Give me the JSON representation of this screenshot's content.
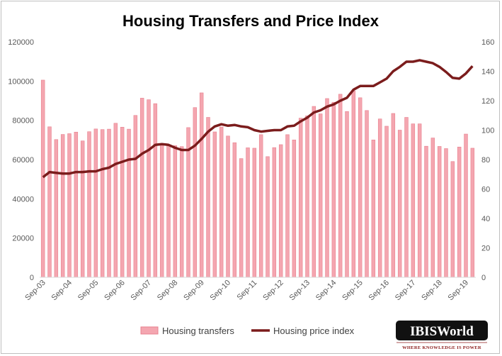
{
  "chart_data": {
    "type": "bar",
    "title": "Housing Transfers and Price Index",
    "categories": [
      "Sep-03",
      "",
      "",
      "",
      "Sep-04",
      "",
      "",
      "",
      "Sep-05",
      "",
      "",
      "",
      "Sep-06",
      "",
      "",
      "",
      "Sep-07",
      "",
      "",
      "",
      "Sep-08",
      "",
      "",
      "",
      "Sep-09",
      "",
      "",
      "",
      "Sep-10",
      "",
      "",
      "",
      "Sep-11",
      "",
      "",
      "",
      "Sep-12",
      "",
      "",
      "",
      "Sep-13",
      "",
      "",
      "",
      "Sep-14",
      "",
      "",
      "",
      "Sep-15",
      "",
      "",
      "",
      "Sep-16",
      "",
      "",
      "",
      "Sep-17",
      "",
      "",
      "",
      "Sep-18",
      "",
      "",
      "",
      "Sep-19",
      ""
    ],
    "series": [
      {
        "name": "Housing transfers",
        "type": "bar",
        "axis": "left",
        "color": "#f4a6b0",
        "values": [
          100500,
          76700,
          70200,
          72800,
          73200,
          74000,
          69500,
          74200,
          75600,
          75300,
          75500,
          78500,
          76500,
          75500,
          82500,
          91300,
          90500,
          88500,
          67000,
          67600,
          67100,
          66600,
          76300,
          86500,
          94000,
          81500,
          74100,
          76600,
          72000,
          68600,
          60500,
          66000,
          65800,
          72700,
          61500,
          66100,
          67600,
          72700,
          70000,
          81100,
          82300,
          87100,
          83300,
          91100,
          89200,
          93300,
          84500,
          95000,
          91500,
          85000,
          70000,
          80700,
          77000,
          83500,
          75000,
          81500,
          78200,
          78200,
          66800,
          71000,
          66700,
          65600,
          59000,
          66400,
          73000,
          65800
        ]
      },
      {
        "name": "Housing price index",
        "type": "line",
        "axis": "right",
        "color": "#7b1c1c",
        "values": [
          68,
          71.5,
          71,
          70.5,
          70.5,
          71.5,
          71.5,
          72,
          72,
          73.5,
          74.5,
          77,
          78.5,
          80,
          80.5,
          84,
          86.5,
          90,
          90.5,
          90,
          88,
          86.5,
          86.5,
          89.5,
          94,
          99,
          102.5,
          104,
          103,
          103.5,
          102.5,
          102,
          100,
          99,
          99.5,
          100,
          100,
          102.5,
          103,
          106,
          108.5,
          112,
          113.5,
          116,
          117.5,
          120,
          122,
          127.5,
          130,
          130,
          130,
          132.5,
          135,
          140,
          143,
          146.5,
          146.5,
          147.5,
          146.5,
          145.5,
          143,
          139.5,
          135.5,
          135,
          138.5,
          143.5
        ]
      }
    ],
    "y_left": {
      "min": 0,
      "max": 120000,
      "ticks": [
        0,
        20000,
        40000,
        60000,
        80000,
        100000,
        120000
      ]
    },
    "y_right": {
      "min": 0,
      "max": 160,
      "ticks": [
        0,
        20,
        40,
        60,
        80,
        100,
        120,
        140,
        160
      ]
    },
    "legend": {
      "position": "bottom"
    },
    "grid": false
  },
  "branding": {
    "logo_text": "IBISWorld",
    "tagline": "WHERE KNOWLEDGE IS POWER"
  }
}
